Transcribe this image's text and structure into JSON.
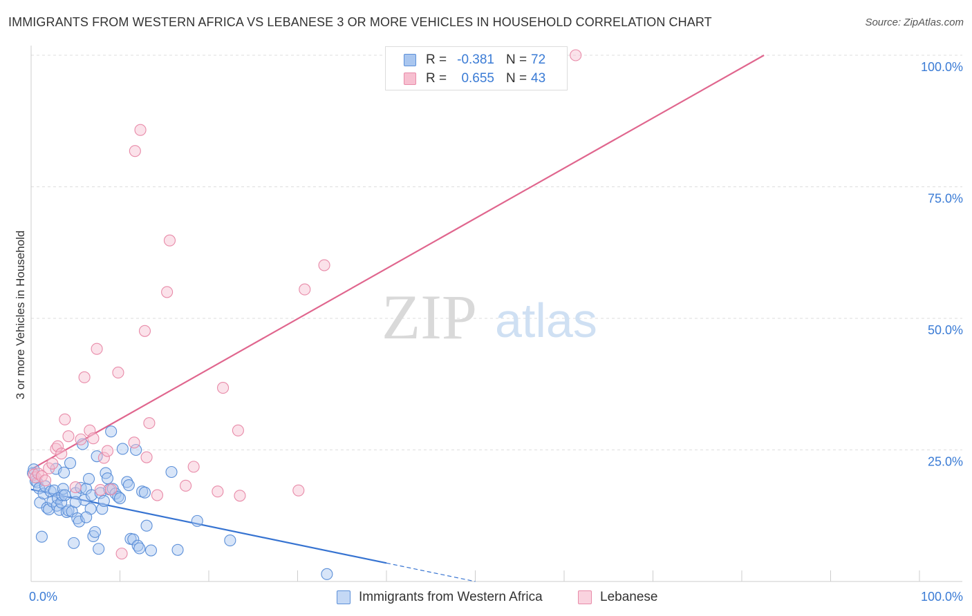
{
  "title": "IMMIGRANTS FROM WESTERN AFRICA VS LEBANESE 3 OR MORE VEHICLES IN HOUSEHOLD CORRELATION CHART",
  "source": "Source: ZipAtlas.com",
  "watermark": {
    "zip": "ZIP",
    "atlas": "atlas"
  },
  "legend": {
    "rows": [
      {
        "r_label": "R =",
        "r_value": "-0.381",
        "n_label": "N =",
        "n_value": "72"
      },
      {
        "r_label": "R =",
        "r_value": "0.655",
        "n_label": "N =",
        "n_value": "43"
      }
    ]
  },
  "colors": {
    "blue_fill": "#a9c6ef",
    "blue_stroke": "#5b8fd8",
    "blue_line": "#3673d1",
    "pink_fill": "#f7bfd0",
    "pink_stroke": "#e88aa8",
    "pink_line": "#e0668e",
    "grid": "#dedede",
    "tick_label": "#3a7bd5"
  },
  "chart_data": {
    "type": "scatter",
    "title": "IMMIGRANTS FROM WESTERN AFRICA VS LEBANESE 3 OR MORE VEHICLES IN HOUSEHOLD CORRELATION CHART",
    "xlabel": "",
    "ylabel": "3 or more Vehicles in Household",
    "xlim": [
      0,
      100
    ],
    "ylim": [
      0,
      100
    ],
    "x_tick_labels": [
      "0.0%",
      "100.0%"
    ],
    "y_ticks": [
      25,
      50,
      75,
      100
    ],
    "y_tick_labels": [
      "25.0%",
      "50.0%",
      "75.0%",
      "100.0%"
    ],
    "grid": true,
    "series": [
      {
        "name": "Immigrants from Western Africa",
        "color": "blue",
        "trend": {
          "x": [
            0,
            40
          ],
          "y": [
            17.5,
            3.5
          ],
          "dashed_to": [
            50,
            0
          ]
        },
        "points": [
          [
            0.2,
            20.6
          ],
          [
            0.3,
            21.3
          ],
          [
            0.5,
            19.1
          ],
          [
            0.7,
            18.8
          ],
          [
            0.9,
            17.7
          ],
          [
            1.0,
            15.0
          ],
          [
            1.2,
            8.5
          ],
          [
            1.4,
            16.7
          ],
          [
            1.6,
            18.1
          ],
          [
            1.8,
            14.0
          ],
          [
            2.0,
            13.7
          ],
          [
            2.2,
            17.1
          ],
          [
            2.4,
            15.2
          ],
          [
            2.6,
            17.3
          ],
          [
            2.8,
            21.4
          ],
          [
            2.9,
            14.4
          ],
          [
            3.0,
            15.8
          ],
          [
            3.2,
            13.6
          ],
          [
            3.4,
            15.0
          ],
          [
            3.5,
            16.4
          ],
          [
            3.6,
            17.6
          ],
          [
            3.7,
            20.7
          ],
          [
            3.8,
            16.4
          ],
          [
            4.0,
            13.2
          ],
          [
            4.2,
            13.5
          ],
          [
            4.4,
            22.5
          ],
          [
            4.6,
            13.3
          ],
          [
            4.8,
            7.3
          ],
          [
            5.0,
            16.8
          ],
          [
            5.2,
            12.0
          ],
          [
            5.4,
            11.4
          ],
          [
            5.6,
            17.8
          ],
          [
            5.8,
            26.1
          ],
          [
            6.0,
            15.5
          ],
          [
            6.2,
            17.6
          ],
          [
            6.5,
            19.5
          ],
          [
            6.7,
            13.8
          ],
          [
            6.8,
            16.4
          ],
          [
            7.0,
            8.6
          ],
          [
            7.2,
            9.4
          ],
          [
            7.4,
            23.8
          ],
          [
            7.6,
            6.2
          ],
          [
            7.8,
            16.8
          ],
          [
            8.0,
            13.8
          ],
          [
            8.2,
            15.3
          ],
          [
            8.4,
            20.6
          ],
          [
            8.6,
            19.6
          ],
          [
            8.8,
            17.5
          ],
          [
            9.0,
            28.5
          ],
          [
            9.2,
            17.6
          ],
          [
            9.5,
            16.7
          ],
          [
            9.8,
            16.1
          ],
          [
            10.0,
            15.8
          ],
          [
            10.3,
            25.2
          ],
          [
            10.8,
            18.9
          ],
          [
            11.0,
            18.3
          ],
          [
            11.2,
            8.1
          ],
          [
            11.5,
            8.0
          ],
          [
            11.8,
            25.0
          ],
          [
            12.0,
            6.8
          ],
          [
            12.2,
            6.3
          ],
          [
            12.5,
            17.1
          ],
          [
            12.8,
            16.9
          ],
          [
            13.0,
            10.6
          ],
          [
            13.5,
            5.9
          ],
          [
            15.8,
            20.8
          ],
          [
            16.5,
            6.0
          ],
          [
            18.7,
            11.5
          ],
          [
            22.4,
            7.8
          ],
          [
            33.3,
            1.4
          ],
          [
            5.0,
            15.1
          ],
          [
            6.2,
            12.2
          ]
        ]
      },
      {
        "name": "Lebanese",
        "color": "pink",
        "trend": {
          "x": [
            0,
            82.5
          ],
          "y": [
            21.3,
            100
          ]
        },
        "points": [
          [
            0.3,
            20.3
          ],
          [
            0.5,
            19.8
          ],
          [
            0.8,
            20.5
          ],
          [
            1.2,
            20.0
          ],
          [
            1.6,
            19.2
          ],
          [
            2.0,
            21.5
          ],
          [
            2.4,
            22.4
          ],
          [
            2.8,
            25.2
          ],
          [
            3.0,
            25.7
          ],
          [
            3.4,
            24.3
          ],
          [
            3.8,
            30.8
          ],
          [
            4.2,
            27.6
          ],
          [
            5.0,
            17.9
          ],
          [
            5.6,
            27.0
          ],
          [
            6.0,
            38.8
          ],
          [
            6.6,
            28.7
          ],
          [
            7.0,
            27.2
          ],
          [
            7.4,
            44.2
          ],
          [
            7.8,
            17.4
          ],
          [
            8.2,
            23.5
          ],
          [
            8.6,
            24.8
          ],
          [
            9.0,
            17.5
          ],
          [
            9.8,
            39.7
          ],
          [
            10.2,
            5.3
          ],
          [
            11.6,
            26.4
          ],
          [
            11.7,
            81.8
          ],
          [
            12.3,
            85.8
          ],
          [
            12.8,
            47.6
          ],
          [
            13.0,
            23.6
          ],
          [
            13.3,
            30.1
          ],
          [
            14.2,
            16.4
          ],
          [
            15.3,
            55.0
          ],
          [
            15.6,
            64.8
          ],
          [
            17.4,
            18.2
          ],
          [
            18.3,
            21.8
          ],
          [
            21.0,
            17.1
          ],
          [
            21.6,
            36.8
          ],
          [
            23.3,
            28.7
          ],
          [
            23.5,
            16.3
          ],
          [
            30.1,
            17.3
          ],
          [
            30.8,
            55.5
          ],
          [
            33.0,
            60.1
          ],
          [
            61.3,
            100.0
          ]
        ]
      }
    ]
  },
  "bottom_legend": [
    "Immigrants from Western Africa",
    "Lebanese"
  ]
}
